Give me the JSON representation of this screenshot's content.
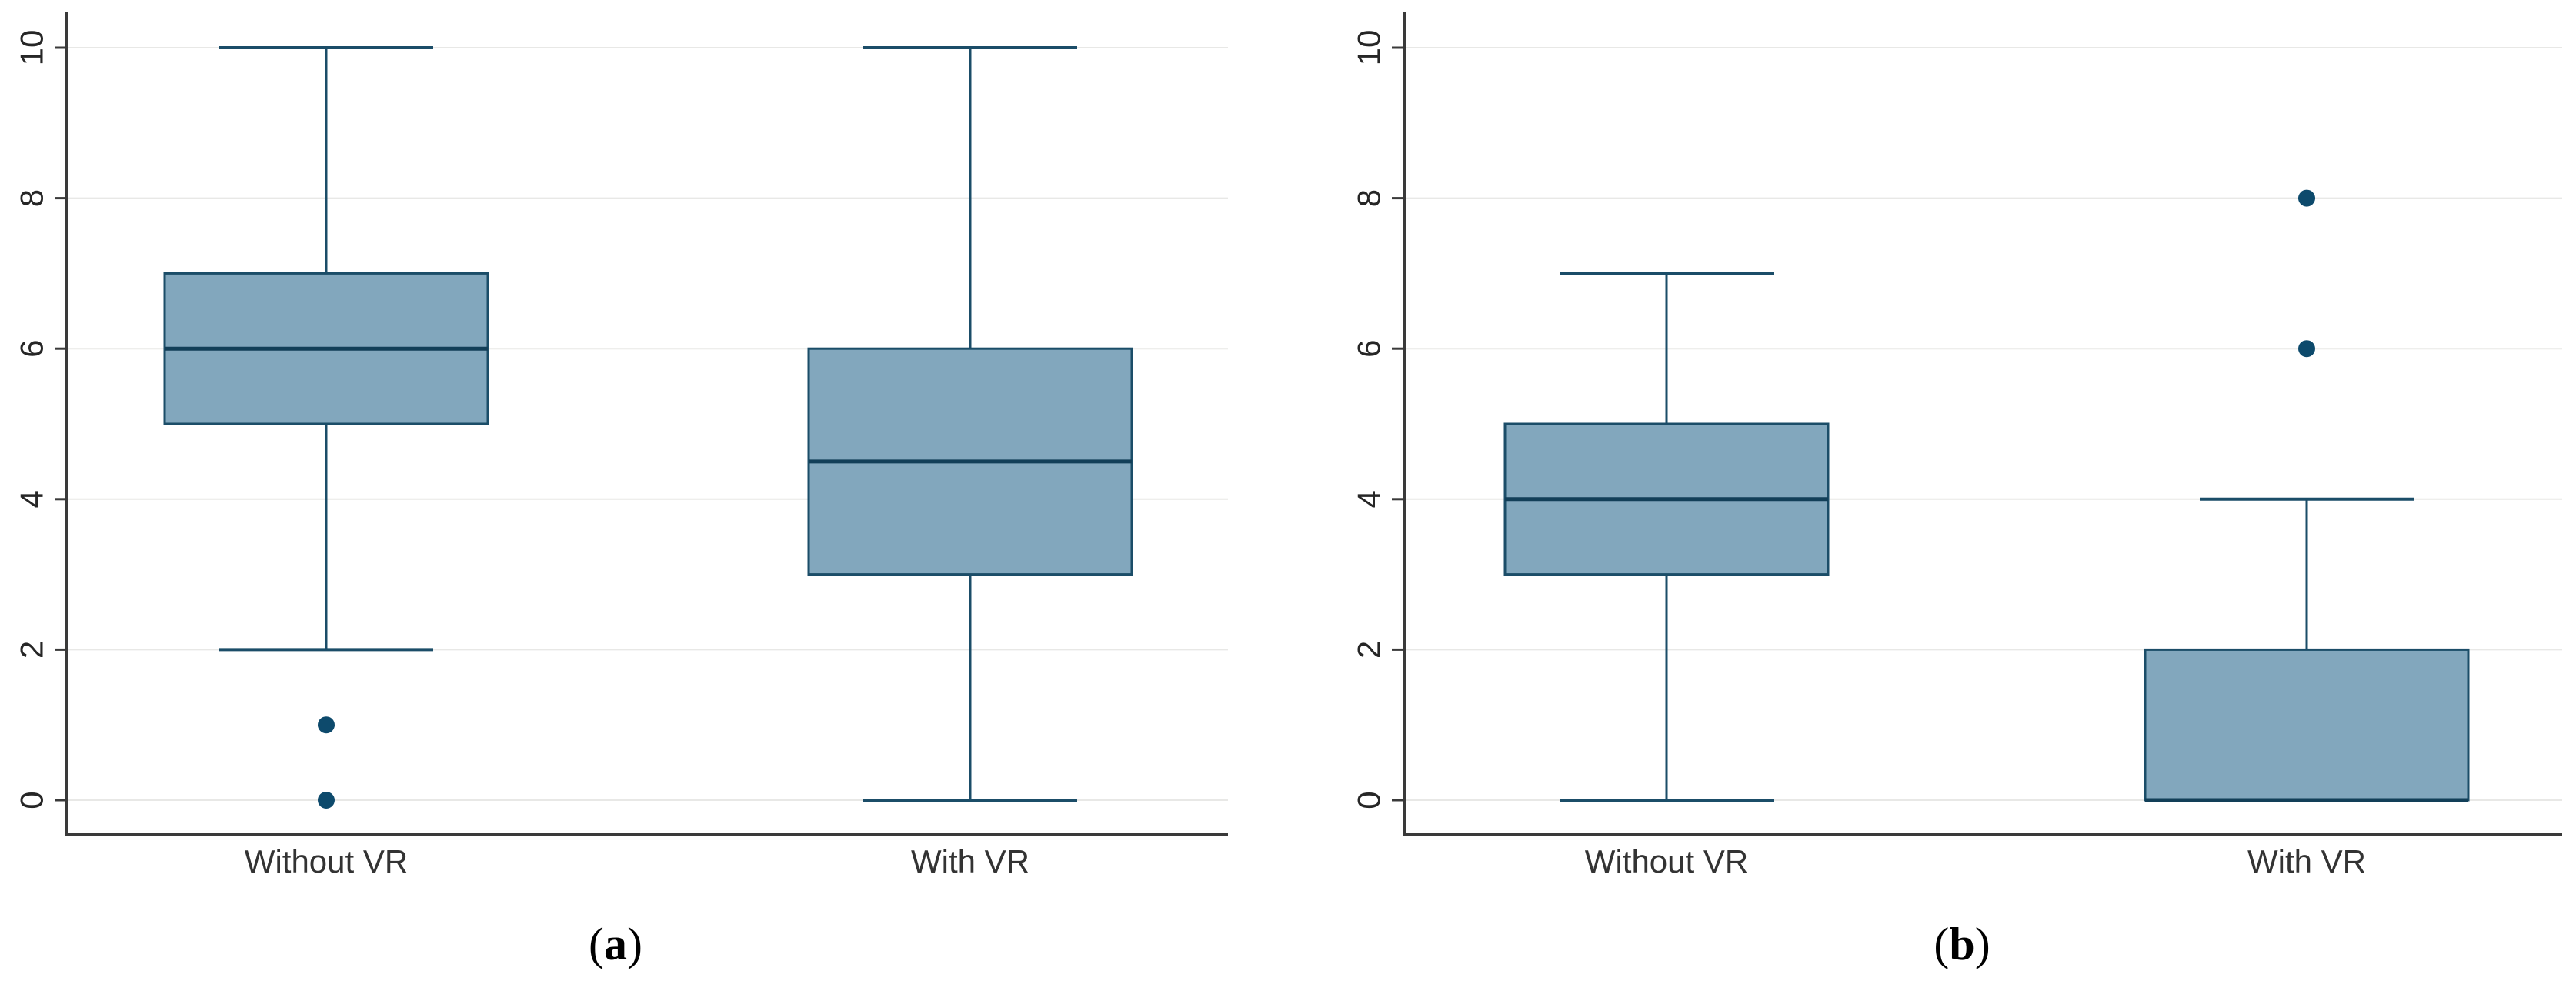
{
  "figure": {
    "captions": [
      {
        "open": "(",
        "letter": "a",
        "close": ")"
      },
      {
        "open": "(",
        "letter": "b",
        "close": ")"
      }
    ]
  },
  "colors": {
    "box_fill": "#82a7bd",
    "box_stroke": "#1b4d68",
    "median_line": "#123f58",
    "whisker": "#1b4d68",
    "outlier_dot": "#0d4a6c",
    "gridline": "#e8e8e6",
    "axis_line": "#3a3a3a",
    "tick_label": "#262626",
    "category_label": "#333333",
    "background": "#ffffff"
  },
  "chart_data": [
    {
      "type": "boxplot",
      "panel": "a",
      "title": "",
      "xlabel": "",
      "ylabel": "",
      "ylim": [
        0,
        10
      ],
      "yticks": [
        "0",
        "2",
        "4",
        "6",
        "8",
        "10"
      ],
      "ytick_values": [
        0,
        2,
        4,
        6,
        8,
        10
      ],
      "grid": true,
      "legend": "none",
      "categories": [
        "Without VR",
        "With VR"
      ],
      "series": [
        {
          "name": "Without VR",
          "whisker_low": 2,
          "q1": 5,
          "median": 6,
          "q3": 7,
          "whisker_high": 10,
          "outliers": [
            1,
            0
          ]
        },
        {
          "name": "With VR",
          "whisker_low": 0,
          "q1": 3,
          "median": 4.5,
          "q3": 6,
          "whisker_high": 10,
          "outliers": []
        }
      ]
    },
    {
      "type": "boxplot",
      "panel": "b",
      "title": "",
      "xlabel": "",
      "ylabel": "",
      "ylim": [
        0,
        10
      ],
      "yticks": [
        "0",
        "2",
        "4",
        "6",
        "8",
        "10"
      ],
      "ytick_values": [
        0,
        2,
        4,
        6,
        8,
        10
      ],
      "grid": true,
      "legend": "none",
      "categories": [
        "Without VR",
        "With VR"
      ],
      "series": [
        {
          "name": "Without VR",
          "whisker_low": 0,
          "q1": 3,
          "median": 4,
          "q3": 5,
          "whisker_high": 7,
          "outliers": []
        },
        {
          "name": "With VR",
          "whisker_low": 0,
          "q1": 0,
          "median": 0,
          "q3": 2,
          "whisker_high": 4,
          "outliers": [
            8,
            6
          ]
        }
      ]
    }
  ]
}
